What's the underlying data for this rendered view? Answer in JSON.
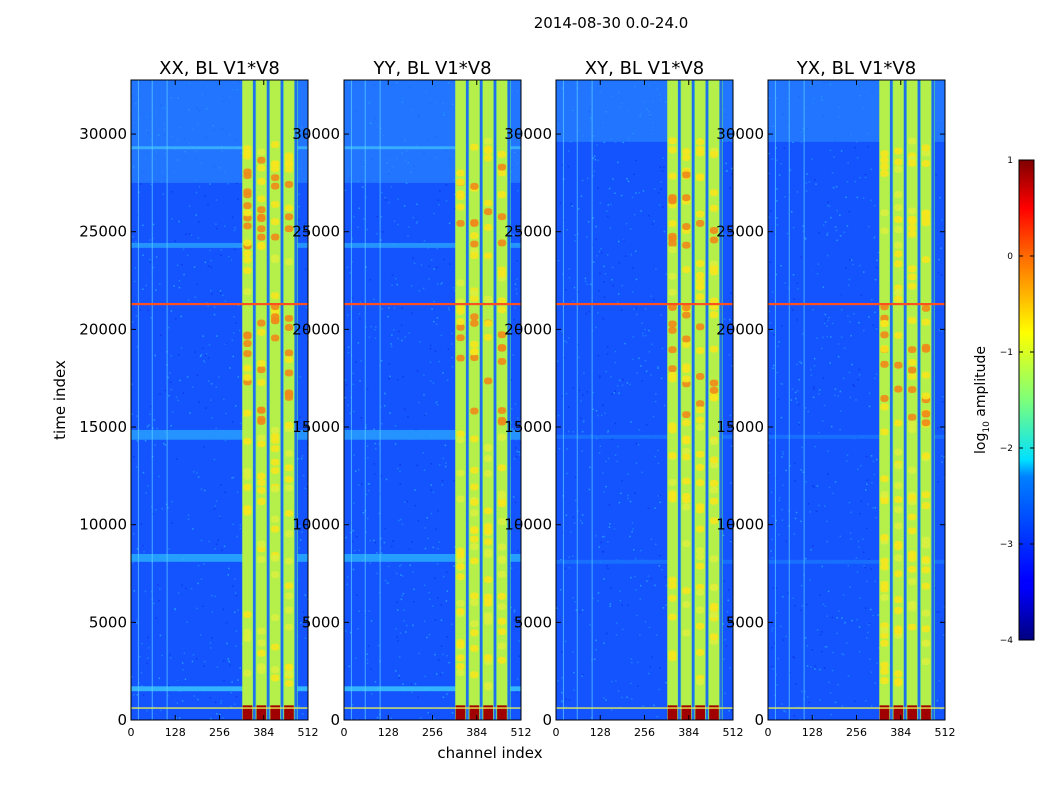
{
  "figure": {
    "suptitle": "2014-08-30 0.0-24.0",
    "xlabel": "channel index",
    "ylabel": "time index"
  },
  "chart_data": {
    "type": "heatmap",
    "title": "2014-08-30 0.0-24.0",
    "xlabel": "channel index",
    "ylabel": "time index",
    "xlim": [
      0,
      512
    ],
    "ylim": [
      0,
      32768
    ],
    "xticks": [
      0,
      128,
      256,
      384,
      512
    ],
    "yticks": [
      0,
      5000,
      10000,
      15000,
      20000,
      25000,
      30000
    ],
    "panels": [
      {
        "title": "XX, BL V1*V8",
        "pol": "XX"
      },
      {
        "title": "YY, BL V1*V8",
        "pol": "YY"
      },
      {
        "title": "XY, BL V1*V8",
        "pol": "XY"
      },
      {
        "title": "YX, BL V1*V8",
        "pol": "YX"
      }
    ],
    "bright_channel_band": [
      322,
      482
    ],
    "bright_channel_stripes": [
      337,
      377,
      417,
      457
    ],
    "rfi_time_index": 21300,
    "colorbar": {
      "label": "log10 amplitude",
      "range": [
        -4,
        1
      ],
      "ticks": [
        "1",
        "0",
        "−1",
        "−2",
        "−3",
        "−4"
      ],
      "colormap": "jet"
    }
  },
  "colors": {
    "background_blue": "#1a5cff",
    "band_green": "#9cf55a",
    "hot_yellow": "#f5e61e",
    "hot_red": "#e8201a",
    "deep_red": "#8b0000"
  }
}
